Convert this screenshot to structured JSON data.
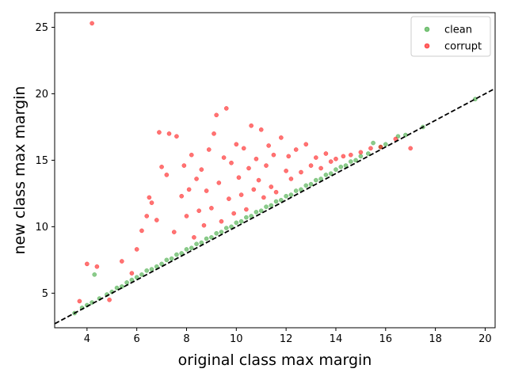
{
  "chart_data": {
    "type": "scatter",
    "title": "",
    "xlabel": "original class max margin",
    "ylabel": "new class max margin",
    "xlim": [
      2.7,
      20.4
    ],
    "ylim": [
      2.4,
      26.1
    ],
    "xticks": [
      "4",
      "6",
      "8",
      "10",
      "12",
      "14",
      "16",
      "18",
      "20"
    ],
    "yticks": [
      "5",
      "10",
      "15",
      "20",
      "25"
    ],
    "grid": false,
    "legend_position": "top-right",
    "reference_line": {
      "style": "dashed",
      "color": "#000000",
      "slope": 1,
      "intercept": 0
    },
    "series": [
      {
        "name": "clean",
        "color": "#2ca02c",
        "points": [
          [
            3.5,
            3.5
          ],
          [
            3.8,
            3.9
          ],
          [
            4.0,
            4.1
          ],
          [
            4.2,
            4.3
          ],
          [
            4.3,
            6.4
          ],
          [
            4.5,
            4.6
          ],
          [
            4.8,
            4.9
          ],
          [
            5.0,
            5.1
          ],
          [
            5.2,
            5.4
          ],
          [
            5.4,
            5.5
          ],
          [
            5.6,
            5.8
          ],
          [
            5.8,
            6.0
          ],
          [
            6.0,
            6.2
          ],
          [
            6.2,
            6.4
          ],
          [
            6.4,
            6.7
          ],
          [
            6.6,
            6.8
          ],
          [
            6.8,
            7.0
          ],
          [
            7.0,
            7.2
          ],
          [
            7.2,
            7.5
          ],
          [
            7.4,
            7.6
          ],
          [
            7.6,
            7.9
          ],
          [
            7.8,
            8.0
          ],
          [
            8.0,
            8.3
          ],
          [
            8.2,
            8.4
          ],
          [
            8.4,
            8.7
          ],
          [
            8.6,
            8.8
          ],
          [
            8.8,
            9.1
          ],
          [
            9.0,
            9.2
          ],
          [
            9.2,
            9.5
          ],
          [
            9.4,
            9.6
          ],
          [
            9.6,
            9.9
          ],
          [
            9.8,
            10.0
          ],
          [
            10.0,
            10.3
          ],
          [
            10.2,
            10.4
          ],
          [
            10.4,
            10.7
          ],
          [
            10.6,
            10.8
          ],
          [
            10.8,
            11.1
          ],
          [
            11.0,
            11.2
          ],
          [
            11.2,
            11.5
          ],
          [
            11.4,
            11.6
          ],
          [
            11.6,
            11.9
          ],
          [
            11.8,
            12.0
          ],
          [
            12.0,
            12.3
          ],
          [
            12.2,
            12.4
          ],
          [
            12.4,
            12.7
          ],
          [
            12.6,
            12.8
          ],
          [
            12.8,
            13.1
          ],
          [
            13.0,
            13.2
          ],
          [
            13.2,
            13.5
          ],
          [
            13.4,
            13.6
          ],
          [
            13.6,
            13.9
          ],
          [
            13.8,
            14.0
          ],
          [
            14.0,
            14.3
          ],
          [
            14.2,
            14.5
          ],
          [
            14.4,
            14.6
          ],
          [
            14.6,
            14.9
          ],
          [
            14.8,
            15.0
          ],
          [
            15.0,
            15.3
          ],
          [
            15.3,
            15.5
          ],
          [
            15.5,
            16.3
          ],
          [
            15.8,
            16.0
          ],
          [
            16.0,
            16.2
          ],
          [
            16.5,
            16.8
          ],
          [
            16.8,
            16.9
          ],
          [
            17.5,
            17.5
          ],
          [
            19.6,
            19.6
          ]
        ]
      },
      {
        "name": "corrupt",
        "color": "#ff0000",
        "points": [
          [
            4.2,
            25.3
          ],
          [
            3.7,
            4.4
          ],
          [
            4.0,
            7.2
          ],
          [
            4.4,
            7.0
          ],
          [
            4.9,
            4.5
          ],
          [
            5.4,
            7.4
          ],
          [
            5.8,
            6.5
          ],
          [
            6.0,
            8.3
          ],
          [
            6.2,
            9.7
          ],
          [
            6.4,
            10.8
          ],
          [
            6.5,
            12.2
          ],
          [
            6.6,
            11.8
          ],
          [
            6.8,
            10.5
          ],
          [
            6.9,
            17.1
          ],
          [
            7.0,
            14.5
          ],
          [
            7.2,
            13.9
          ],
          [
            7.3,
            17.0
          ],
          [
            7.5,
            9.6
          ],
          [
            7.6,
            16.8
          ],
          [
            7.8,
            12.3
          ],
          [
            7.9,
            14.6
          ],
          [
            8.0,
            10.8
          ],
          [
            8.1,
            12.8
          ],
          [
            8.2,
            15.4
          ],
          [
            8.3,
            9.2
          ],
          [
            8.4,
            13.6
          ],
          [
            8.5,
            11.2
          ],
          [
            8.6,
            14.3
          ],
          [
            8.7,
            10.1
          ],
          [
            8.8,
            12.7
          ],
          [
            8.9,
            15.8
          ],
          [
            9.0,
            11.4
          ],
          [
            9.1,
            17.0
          ],
          [
            9.2,
            18.4
          ],
          [
            9.3,
            13.3
          ],
          [
            9.4,
            10.4
          ],
          [
            9.5,
            15.2
          ],
          [
            9.6,
            18.9
          ],
          [
            9.7,
            12.1
          ],
          [
            9.8,
            14.8
          ],
          [
            9.9,
            11.0
          ],
          [
            10.0,
            16.2
          ],
          [
            10.1,
            13.7
          ],
          [
            10.2,
            12.4
          ],
          [
            10.3,
            15.9
          ],
          [
            10.4,
            11.3
          ],
          [
            10.5,
            14.4
          ],
          [
            10.6,
            17.6
          ],
          [
            10.7,
            12.8
          ],
          [
            10.8,
            15.1
          ],
          [
            10.9,
            13.5
          ],
          [
            11.0,
            17.3
          ],
          [
            11.1,
            12.2
          ],
          [
            11.2,
            14.6
          ],
          [
            11.3,
            16.1
          ],
          [
            11.4,
            13.0
          ],
          [
            11.5,
            15.4
          ],
          [
            11.6,
            12.6
          ],
          [
            11.8,
            16.7
          ],
          [
            12.0,
            14.2
          ],
          [
            12.1,
            15.3
          ],
          [
            12.2,
            13.6
          ],
          [
            12.4,
            15.8
          ],
          [
            12.6,
            14.1
          ],
          [
            12.8,
            16.2
          ],
          [
            13.0,
            14.6
          ],
          [
            13.2,
            15.2
          ],
          [
            13.4,
            14.4
          ],
          [
            13.6,
            15.5
          ],
          [
            13.8,
            14.9
          ],
          [
            14.0,
            15.1
          ],
          [
            14.3,
            15.3
          ],
          [
            14.6,
            15.4
          ],
          [
            15.0,
            15.6
          ],
          [
            15.4,
            15.9
          ],
          [
            15.8,
            16.0
          ],
          [
            16.4,
            16.6
          ],
          [
            17.0,
            15.9
          ]
        ]
      }
    ]
  }
}
